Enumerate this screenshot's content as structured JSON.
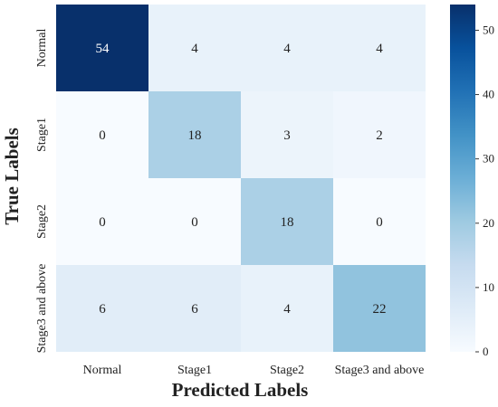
{
  "chart_data": {
    "type": "heatmap",
    "title": "",
    "xlabel": "Predicted Labels",
    "ylabel": "True Labels",
    "x_categories": [
      "Normal",
      "Stage1",
      "Stage2",
      "Stage3 and above"
    ],
    "y_categories": [
      "Normal",
      "Stage1",
      "Stage2",
      "Stage3 and above"
    ],
    "matrix": [
      [
        54,
        4,
        4,
        4
      ],
      [
        0,
        18,
        3,
        2
      ],
      [
        0,
        0,
        18,
        0
      ],
      [
        6,
        6,
        4,
        22
      ]
    ],
    "colorscale": "Blues",
    "colorbar": {
      "min": 0,
      "max": 54,
      "ticks": [
        0,
        10,
        20,
        30,
        40,
        50
      ]
    },
    "colors": {
      "low": "#f7fbff",
      "high": "#08306b"
    }
  }
}
